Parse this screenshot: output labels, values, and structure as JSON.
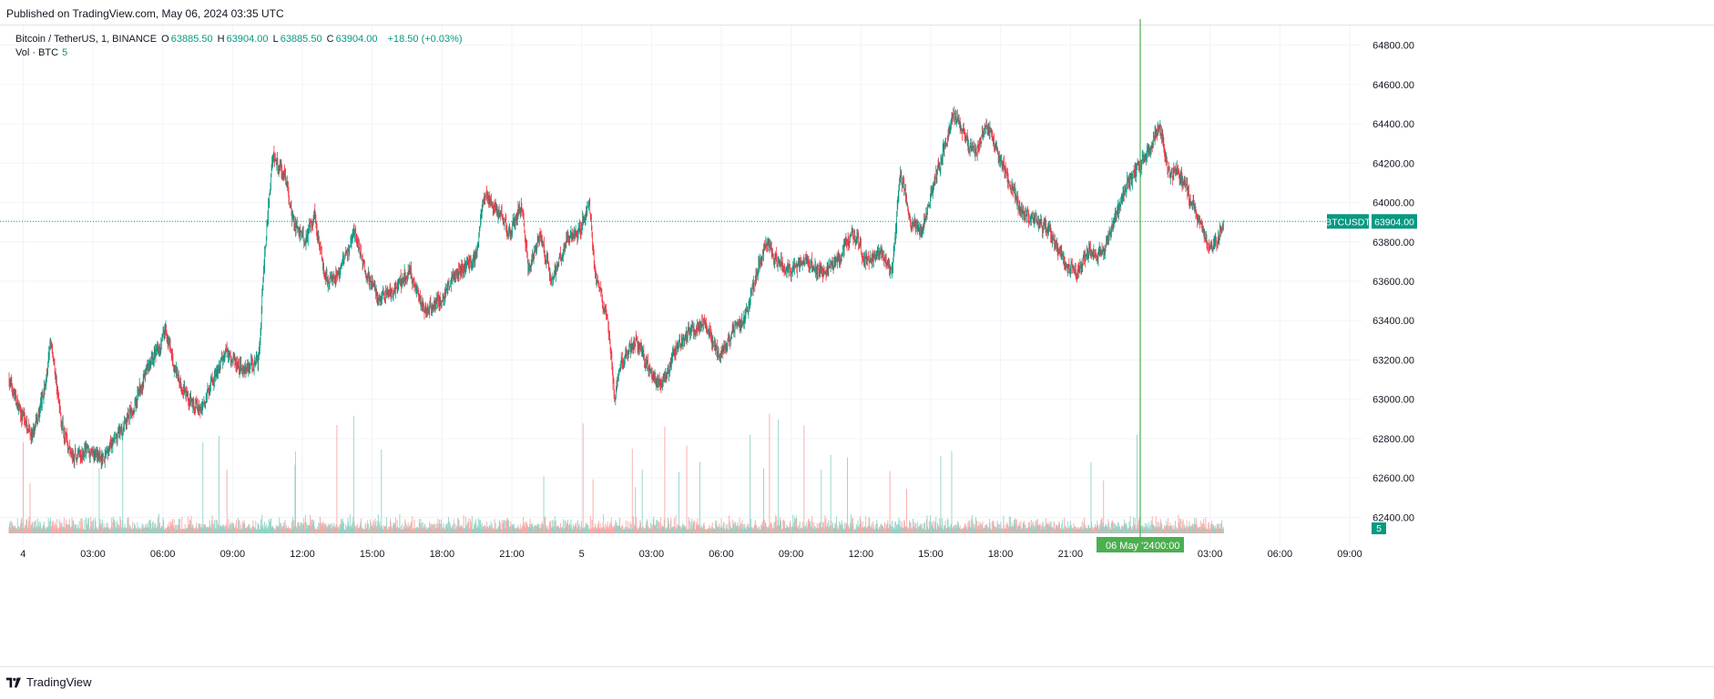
{
  "published": "Published on TradingView.com, May 06, 2024 03:35 UTC",
  "legend": {
    "symbol": "Bitcoin / TetherUS, 1, BINANCE",
    "o_label": "O",
    "o": "63885.50",
    "h_label": "H",
    "h": "63904.00",
    "l_label": "L",
    "l": "63885.50",
    "c_label": "C",
    "c": "63904.00",
    "change": "+18.50 (+0.03%)",
    "volume_label": "Vol · BTC",
    "volume": "5"
  },
  "badges": {
    "symbol": "BTCUSDT",
    "price": "63904.00",
    "volume": "5",
    "crosshair_date": "06 May '24",
    "crosshair_time": "00:00"
  },
  "footer": {
    "brand": "TradingView"
  },
  "colors": {
    "up": "#089981",
    "down": "#f23645",
    "crosshair": "#4caf50",
    "grid": "#f0f3fa",
    "text": "#131722"
  },
  "chart_data": {
    "type": "candlestick",
    "title": "Bitcoin / TetherUS, 1, BINANCE",
    "interval": "1 minute",
    "y_axis": {
      "ticks": [
        62400,
        62600,
        62800,
        63000,
        63200,
        63400,
        63600,
        63800,
        64000,
        64200,
        64400,
        64600,
        64800
      ],
      "range": [
        62300,
        64900
      ]
    },
    "x_axis": {
      "ticks": [
        "4",
        "03:00",
        "06:00",
        "09:00",
        "12:00",
        "15:00",
        "18:00",
        "21:00",
        "5",
        "03:00",
        "06:00",
        "09:00",
        "12:00",
        "15:00",
        "18:00",
        "21:00",
        "06 May '24",
        "03:00",
        "06:00",
        "09:00"
      ],
      "range_hours": [
        0,
        58.5
      ]
    },
    "last_price": 63904.0,
    "crosshair_hour": 48,
    "price_path": [
      {
        "t": 0,
        "p": 63100
      },
      {
        "t": 0.4,
        "p": 62950
      },
      {
        "t": 1.0,
        "p": 62800
      },
      {
        "t": 1.5,
        "p": 63050
      },
      {
        "t": 1.8,
        "p": 63300
      },
      {
        "t": 2.2,
        "p": 62900
      },
      {
        "t": 2.7,
        "p": 62700
      },
      {
        "t": 3.3,
        "p": 62750
      },
      {
        "t": 4.0,
        "p": 62700
      },
      {
        "t": 4.6,
        "p": 62800
      },
      {
        "t": 5.3,
        "p": 62950
      },
      {
        "t": 5.9,
        "p": 63150
      },
      {
        "t": 6.7,
        "p": 63350
      },
      {
        "t": 7.1,
        "p": 63150
      },
      {
        "t": 7.7,
        "p": 63000
      },
      {
        "t": 8.2,
        "p": 62950
      },
      {
        "t": 8.8,
        "p": 63100
      },
      {
        "t": 9.3,
        "p": 63250
      },
      {
        "t": 10.0,
        "p": 63150
      },
      {
        "t": 10.7,
        "p": 63200
      },
      {
        "t": 11.0,
        "p": 63800
      },
      {
        "t": 11.3,
        "p": 64250
      },
      {
        "t": 11.8,
        "p": 64150
      },
      {
        "t": 12.2,
        "p": 63900
      },
      {
        "t": 12.7,
        "p": 63800
      },
      {
        "t": 13.1,
        "p": 63950
      },
      {
        "t": 13.6,
        "p": 63600
      },
      {
        "t": 14.2,
        "p": 63650
      },
      {
        "t": 14.8,
        "p": 63850
      },
      {
        "t": 15.3,
        "p": 63650
      },
      {
        "t": 15.9,
        "p": 63500
      },
      {
        "t": 16.5,
        "p": 63550
      },
      {
        "t": 17.2,
        "p": 63650
      },
      {
        "t": 17.8,
        "p": 63450
      },
      {
        "t": 18.5,
        "p": 63500
      },
      {
        "t": 19.2,
        "p": 63650
      },
      {
        "t": 20.0,
        "p": 63700
      },
      {
        "t": 20.4,
        "p": 64050
      },
      {
        "t": 21.0,
        "p": 63950
      },
      {
        "t": 21.5,
        "p": 63850
      },
      {
        "t": 22.0,
        "p": 64000
      },
      {
        "t": 22.3,
        "p": 63650
      },
      {
        "t": 22.8,
        "p": 63850
      },
      {
        "t": 23.3,
        "p": 63600
      },
      {
        "t": 23.9,
        "p": 63800
      },
      {
        "t": 24.5,
        "p": 63850
      },
      {
        "t": 24.9,
        "p": 64000
      },
      {
        "t": 25.2,
        "p": 63600
      },
      {
        "t": 25.7,
        "p": 63400
      },
      {
        "t": 26.0,
        "p": 63000
      },
      {
        "t": 26.3,
        "p": 63200
      },
      {
        "t": 26.9,
        "p": 63300
      },
      {
        "t": 27.5,
        "p": 63150
      },
      {
        "t": 28.0,
        "p": 63050
      },
      {
        "t": 28.6,
        "p": 63250
      },
      {
        "t": 29.3,
        "p": 63350
      },
      {
        "t": 29.9,
        "p": 63400
      },
      {
        "t": 30.5,
        "p": 63200
      },
      {
        "t": 31.1,
        "p": 63350
      },
      {
        "t": 31.6,
        "p": 63400
      },
      {
        "t": 32.0,
        "p": 63600
      },
      {
        "t": 32.5,
        "p": 63800
      },
      {
        "t": 33.0,
        "p": 63700
      },
      {
        "t": 33.6,
        "p": 63650
      },
      {
        "t": 34.2,
        "p": 63700
      },
      {
        "t": 34.9,
        "p": 63650
      },
      {
        "t": 35.6,
        "p": 63700
      },
      {
        "t": 36.2,
        "p": 63850
      },
      {
        "t": 36.8,
        "p": 63700
      },
      {
        "t": 37.4,
        "p": 63750
      },
      {
        "t": 37.9,
        "p": 63650
      },
      {
        "t": 38.3,
        "p": 64150
      },
      {
        "t": 38.7,
        "p": 63900
      },
      {
        "t": 39.2,
        "p": 63850
      },
      {
        "t": 39.6,
        "p": 64050
      },
      {
        "t": 40.1,
        "p": 64250
      },
      {
        "t": 40.6,
        "p": 64450
      },
      {
        "t": 41.0,
        "p": 64350
      },
      {
        "t": 41.5,
        "p": 64250
      },
      {
        "t": 42.0,
        "p": 64400
      },
      {
        "t": 42.5,
        "p": 64250
      },
      {
        "t": 43.0,
        "p": 64100
      },
      {
        "t": 43.5,
        "p": 63950
      },
      {
        "t": 44.1,
        "p": 63900
      },
      {
        "t": 44.7,
        "p": 63850
      },
      {
        "t": 45.3,
        "p": 63700
      },
      {
        "t": 45.8,
        "p": 63650
      },
      {
        "t": 46.4,
        "p": 63750
      },
      {
        "t": 47.0,
        "p": 63750
      },
      {
        "t": 47.6,
        "p": 63950
      },
      {
        "t": 48.0,
        "p": 64100
      },
      {
        "t": 48.4,
        "p": 64150
      },
      {
        "t": 48.9,
        "p": 64250
      },
      {
        "t": 49.4,
        "p": 64400
      },
      {
        "t": 49.8,
        "p": 64150
      },
      {
        "t": 50.3,
        "p": 64150
      },
      {
        "t": 50.8,
        "p": 64000
      },
      {
        "t": 51.3,
        "p": 63850
      },
      {
        "t": 51.7,
        "p": 63750
      },
      {
        "t": 52.2,
        "p": 63904
      }
    ]
  }
}
